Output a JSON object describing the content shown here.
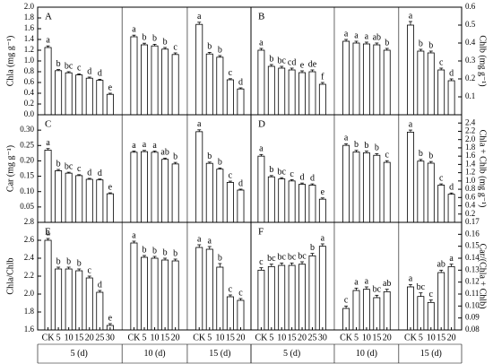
{
  "x_axis": {
    "groups": [
      {
        "label": "5 (d)",
        "categories": [
          "CK",
          "5",
          "10",
          "15",
          "20",
          "25",
          "30"
        ]
      },
      {
        "label": "10 (d)",
        "categories": [
          "CK",
          "5",
          "10",
          "15",
          "20"
        ]
      },
      {
        "label": "15 (d)",
        "categories": [
          "CK",
          "5",
          "10",
          "15",
          "20"
        ]
      }
    ]
  },
  "chart_data": [
    {
      "type": "bar",
      "panel": "A",
      "ylabel": "Chla (mg g⁻¹)",
      "axis_side": "left",
      "color": "#ffffff",
      "ylim": [
        0,
        2.0
      ],
      "yticks": [
        {
          "value": 0,
          "label": "0.0"
        },
        0.2,
        0.4,
        0.6,
        0.8,
        {
          "value": 1,
          "label": "1.0"
        },
        1.2,
        1.4,
        1.6,
        1.8,
        {
          "value": 2,
          "label": "2.0"
        }
      ],
      "values": [
        [
          1.25,
          0.82,
          0.78,
          0.74,
          0.68,
          0.64,
          0.38
        ],
        [
          1.45,
          1.3,
          1.28,
          1.22,
          1.12
        ],
        [
          1.68,
          1.13,
          1.07,
          0.65,
          0.48
        ]
      ],
      "errors": [
        [
          0.03,
          0.02,
          0.02,
          0.02,
          0.02,
          0.02,
          0.02
        ],
        [
          0.03,
          0.03,
          0.03,
          0.03,
          0.03
        ],
        [
          0.04,
          0.03,
          0.03,
          0.02,
          0.02
        ]
      ],
      "letters": [
        [
          "a",
          "b",
          "bc",
          "c",
          "d",
          "d",
          "e"
        ],
        [
          "a",
          "b",
          "b",
          "b",
          "c"
        ],
        [
          "a",
          "b",
          "b",
          "c",
          "d"
        ]
      ]
    },
    {
      "type": "bar",
      "panel": "B",
      "ylabel": "Chlb (mg g⁻¹)",
      "axis_side": "right",
      "color": "#ffffff",
      "ylim": [
        0,
        0.6
      ],
      "yticks": [
        0.1,
        0.2,
        0.3,
        0.4,
        0.5,
        0.6
      ],
      "values": [
        [
          0.36,
          0.27,
          0.26,
          0.25,
          0.235,
          0.24,
          0.17
        ],
        [
          0.41,
          0.4,
          0.395,
          0.39,
          0.36
        ],
        [
          0.5,
          0.355,
          0.345,
          0.25,
          0.19
        ]
      ],
      "errors": [
        [
          0.01,
          0.01,
          0.01,
          0.01,
          0.01,
          0.01,
          0.01
        ],
        [
          0.01,
          0.01,
          0.01,
          0.01,
          0.01
        ],
        [
          0.02,
          0.01,
          0.01,
          0.01,
          0.01
        ]
      ],
      "letters": [
        [
          "a",
          "b",
          "bc",
          "cd",
          "e",
          "de",
          "f"
        ],
        [
          "a",
          "a",
          "a",
          "ab",
          "b"
        ],
        [
          "a",
          "b",
          "b",
          "c",
          "d"
        ]
      ]
    },
    {
      "type": "bar",
      "panel": "C",
      "ylabel": "Car (mg g⁻¹)",
      "axis_side": "left",
      "color": "#ffffff",
      "ylim": [
        0,
        0.35
      ],
      "yticks": [
        0.05,
        {
          "value": 0.1,
          "label": "0.10"
        },
        0.15,
        {
          "value": 0.2,
          "label": "0.20"
        },
        0.25,
        {
          "value": 0.3,
          "label": "0.30"
        }
      ],
      "values": [
        [
          0.235,
          0.168,
          0.16,
          0.152,
          0.14,
          0.138,
          0.093
        ],
        [
          0.228,
          0.23,
          0.228,
          0.205,
          0.19
        ],
        [
          0.295,
          0.192,
          0.173,
          0.13,
          0.105
        ]
      ],
      "errors": [
        [
          0.005,
          0.004,
          0.003,
          0.003,
          0.003,
          0.003,
          0.003
        ],
        [
          0.004,
          0.004,
          0.004,
          0.004,
          0.005
        ],
        [
          0.006,
          0.004,
          0.004,
          0.004,
          0.003
        ]
      ],
      "letters": [
        [
          "a",
          "b",
          "bc",
          "c",
          "d",
          "d",
          "e"
        ],
        [
          "a",
          "a",
          "a",
          "ab",
          "b"
        ],
        [
          "a",
          "b",
          "b",
          "c",
          "d"
        ]
      ]
    },
    {
      "type": "bar",
      "panel": "D",
      "ylabel": "Chla + Chlb (mg g⁻¹)",
      "axis_side": "right",
      "color": "#ffffff",
      "ylim": [
        0,
        2.6
      ],
      "yticks": [
        0.2,
        0.4,
        0.6,
        0.8,
        {
          "value": 1,
          "label": "1.0"
        },
        1.2,
        1.4,
        1.6,
        1.8,
        {
          "value": 2,
          "label": "2.0"
        },
        2.2,
        2.4
      ],
      "values": [
        [
          1.6,
          1.1,
          1.05,
          1.0,
          0.92,
          0.9,
          0.56
        ],
        [
          1.86,
          1.7,
          1.68,
          1.62,
          1.45
        ],
        [
          2.18,
          1.48,
          1.43,
          0.9,
          0.68
        ]
      ],
      "errors": [
        [
          0.04,
          0.03,
          0.03,
          0.03,
          0.03,
          0.03,
          0.03
        ],
        [
          0.04,
          0.04,
          0.04,
          0.04,
          0.04
        ],
        [
          0.05,
          0.04,
          0.04,
          0.03,
          0.03
        ]
      ],
      "letters": [
        [
          "a",
          "b",
          "bc",
          "c",
          "d",
          "d",
          "e"
        ],
        [
          "a",
          "b",
          "b",
          "b",
          "c"
        ],
        [
          "a",
          "b",
          "b",
          "c",
          "d"
        ]
      ]
    },
    {
      "type": "bar",
      "panel": "E",
      "ylabel": "Chla/Chlb",
      "axis_side": "left",
      "color": "#ffffff",
      "ylim": [
        1.6,
        2.8
      ],
      "yticks": [
        1.6,
        1.8,
        {
          "value": 2,
          "label": "2.0"
        },
        2.2,
        2.4,
        2.6,
        2.8
      ],
      "values": [
        [
          2.6,
          2.28,
          2.28,
          2.26,
          2.18,
          2.02,
          1.65
        ],
        [
          2.57,
          2.41,
          2.4,
          2.38,
          2.37
        ],
        [
          2.52,
          2.5,
          2.3,
          1.97,
          1.93
        ]
      ],
      "errors": [
        [
          0.02,
          0.02,
          0.02,
          0.02,
          0.02,
          0.02,
          0.02
        ],
        [
          0.02,
          0.02,
          0.02,
          0.02,
          0.02
        ],
        [
          0.03,
          0.03,
          0.04,
          0.02,
          0.02
        ]
      ],
      "letters": [
        [
          "a",
          "b",
          "b",
          "b",
          "c",
          "d",
          "e"
        ],
        [
          "a",
          "b",
          "b",
          "b",
          "b"
        ],
        [
          "a",
          "a",
          "b",
          "c",
          "c"
        ]
      ]
    },
    {
      "type": "bar",
      "panel": "F",
      "ylabel": "Car/(Chla + Chlb)",
      "axis_side": "right",
      "color": "#ffffff",
      "ylim": [
        0.08,
        0.17
      ],
      "yticks": [
        0.08,
        0.09,
        {
          "value": 0.1,
          "label": "0.10"
        },
        0.11,
        0.12,
        0.13,
        0.14,
        0.15,
        0.16,
        0.17
      ],
      "values": [
        [
          0.13,
          0.133,
          0.134,
          0.134,
          0.135,
          0.142,
          0.15
        ],
        [
          0.098,
          0.113,
          0.114,
          0.107,
          0.112
        ],
        [
          0.116,
          0.108,
          0.103,
          0.128,
          0.133
        ]
      ],
      "errors": [
        [
          0.002,
          0.002,
          0.002,
          0.002,
          0.002,
          0.002,
          0.002
        ],
        [
          0.002,
          0.002,
          0.002,
          0.002,
          0.002
        ],
        [
          0.002,
          0.003,
          0.002,
          0.002,
          0.002
        ]
      ],
      "letters": [
        [
          "c",
          "bc",
          "bc",
          "bc",
          "bc",
          "b",
          "a"
        ],
        [
          "c",
          "a",
          "a",
          "bc",
          "ab"
        ],
        [
          "a",
          "bc",
          "c",
          "ab",
          "a"
        ]
      ]
    }
  ]
}
